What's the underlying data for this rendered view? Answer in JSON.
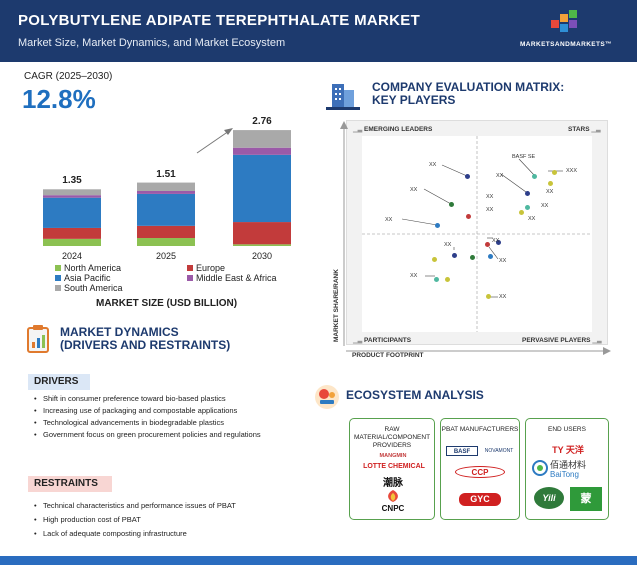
{
  "header": {
    "title": "POLYBUTYLENE ADIPATE TEREPHTHALATE MARKET",
    "subtitle": "Market Size, Market Dynamics, and Market Ecosystem",
    "brand": "MARKETSANDMARKETS™"
  },
  "cagr": {
    "label": "CAGR (2025–2030)",
    "value": "12.8%"
  },
  "chart_data": {
    "type": "bar",
    "stacked": true,
    "categories": [
      "2024",
      "2025",
      "2030"
    ],
    "totals": [
      "1.35",
      "1.51",
      "2.76"
    ],
    "xlabel": "MARKET SIZE (USD BILLION)",
    "series": [
      {
        "name": "North America",
        "color": "#8cc152",
        "values": [
          0.17,
          0.19,
          0.04
        ]
      },
      {
        "name": "Europe",
        "color": "#c23b3b",
        "values": [
          0.26,
          0.29,
          0.53
        ]
      },
      {
        "name": "Asia Pacific",
        "color": "#2d7bc2",
        "values": [
          0.72,
          0.76,
          1.6
        ]
      },
      {
        "name": "Middle East & Africa",
        "color": "#9b5aa8",
        "values": [
          0.06,
          0.07,
          0.17
        ]
      },
      {
        "name": "South America",
        "color": "#a9a9a9",
        "values": [
          0.14,
          0.2,
          0.42
        ]
      }
    ]
  },
  "dynamics": {
    "title_line1": "MARKET DYNAMICS",
    "title_line2": "(DRIVERS AND RESTRAINTS)",
    "drivers_label": "DRIVERS",
    "drivers": [
      "Shift in consumer preference toward bio-based plastics",
      "Increasing use of packaging and compostable applications",
      "Technological advancements in biodegradable plastics",
      "Government focus on green procurement policies and regulations"
    ],
    "restraints_label": "RESTRAINTS",
    "restraints": [
      "Technical characteristics and performance issues of PBAT",
      "High production cost of PBAT",
      "Lack of adequate composting infrastructure"
    ]
  },
  "matrix": {
    "title_line1": "COMPANY EVALUATION MATRIX:",
    "title_line2": "KEY PLAYERS",
    "emerging": "EMERGING LEADERS",
    "stars": "STARS",
    "participants": "PARTICIPANTS",
    "pervasive": "PERVASIVE PLAYERS",
    "y_axis": "MARKET SHARE/RANK",
    "x_axis": "PRODUCT FOOTPRINT",
    "company_label": "BASF SE",
    "placeholder": "XX",
    "placeholder_long": "XXX"
  },
  "ecosystem": {
    "title": "ECOSYSTEM ANALYSIS",
    "raw_title": "RAW MATERIAL/COMPONENT PROVIDERS",
    "raw_logos": [
      "MANGMIN",
      "LOTTE CHEMICAL",
      "潮脉",
      "CNPC"
    ],
    "pbat_title": "PBAT MANUFACTURERS",
    "pbat_logos": [
      "BASF",
      "NOVAMONT",
      "CCP",
      "GYC"
    ],
    "end_title": "END USERS",
    "end_logos": [
      "TY 天洋",
      "佰通材料",
      "BaiTong",
      "Yili",
      "蒙"
    ]
  }
}
